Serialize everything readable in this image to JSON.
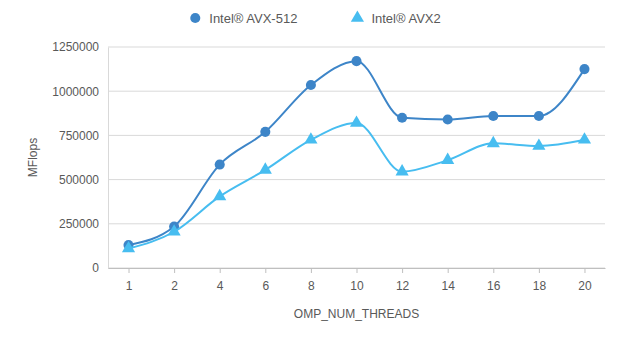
{
  "chart_data": {
    "type": "line",
    "x_label": "OMP_NUM_THREADS",
    "y_label": "MFlops",
    "categories": [
      "1",
      "2",
      "4",
      "6",
      "8",
      "10",
      "12",
      "14",
      "16",
      "18",
      "20"
    ],
    "series": [
      {
        "name": "Intel® AVX-512",
        "color": "#3d85c8",
        "marker": "circle",
        "line_style": "smooth",
        "values": [
          130000,
          235000,
          585000,
          770000,
          1035000,
          1170000,
          850000,
          840000,
          860000,
          860000,
          1125000
        ]
      },
      {
        "name": "Intel® AVX2",
        "color": "#47bdf0",
        "marker": "triangle",
        "line_style": "smooth",
        "values": [
          110000,
          205000,
          405000,
          555000,
          725000,
          820000,
          545000,
          610000,
          705000,
          690000,
          725000
        ]
      }
    ],
    "ylim": [
      0,
      1250000
    ],
    "yticks": [
      0,
      250000,
      500000,
      750000,
      1000000,
      1250000
    ],
    "grid": true,
    "legend": "top"
  }
}
